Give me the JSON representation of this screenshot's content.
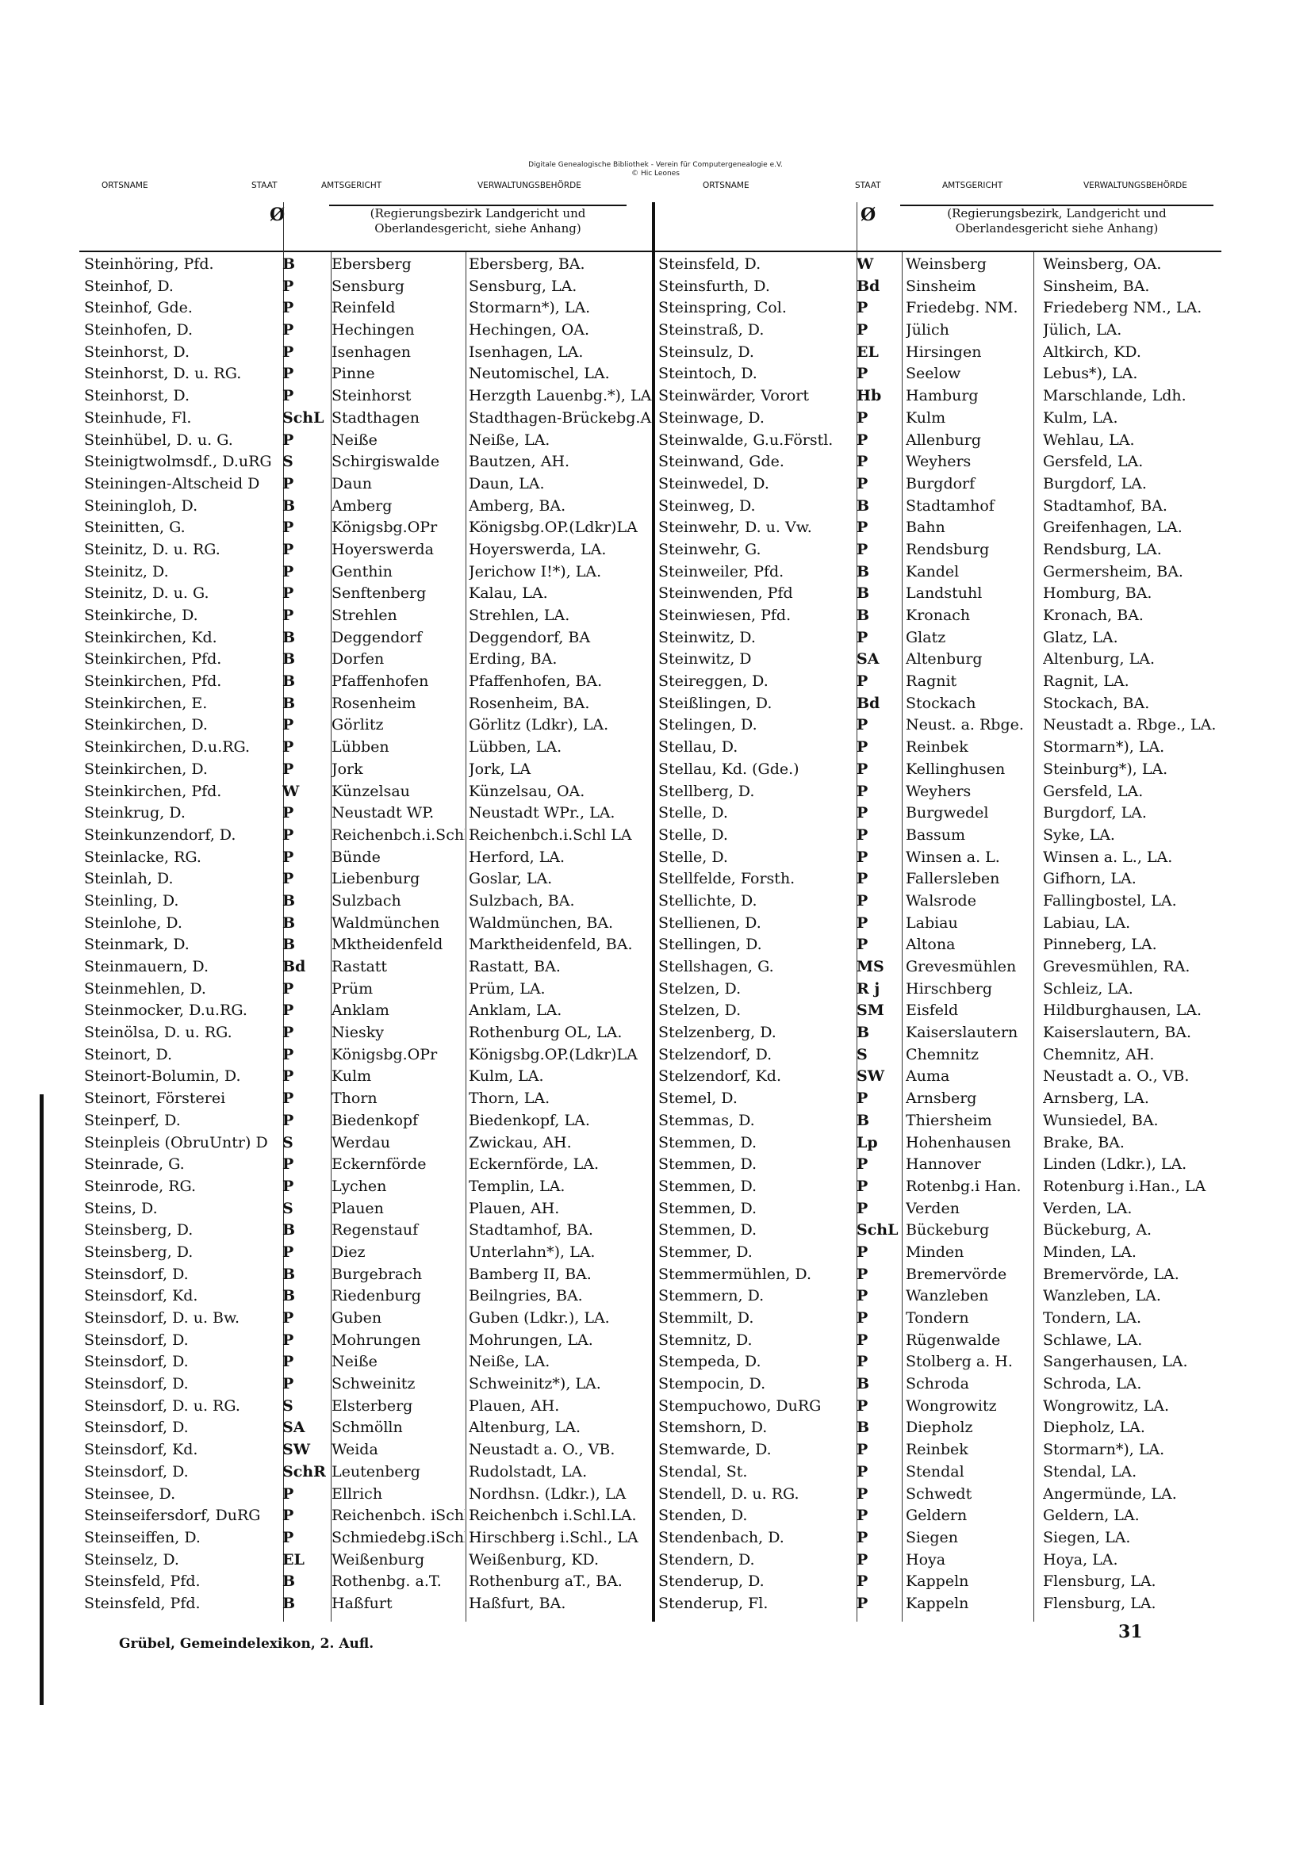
{
  "watermark": {
    "line1": "Digitale Genealogische Bibliothek - Verein für Computergenealogie e.V.",
    "line2": "© Hic Leones"
  },
  "column_headers": [
    "ORTSNAME",
    "STAAT",
    "AMTSGERICHT",
    "VERWALTUNGSBEHÖRDE"
  ],
  "staat_symbol": "Ø",
  "subheader": {
    "left": "(Regierungsbezirk Landgericht und Oberlandesgericht, siehe Anhang)",
    "right": "(Regierungsbezirk, Landgericht und Oberlandesgericht siehe Anhang)"
  },
  "left_rows": [
    [
      "Steinhöring, Pfd.",
      "B",
      "Ebersberg",
      "Ebersberg, BA."
    ],
    [
      "Steinhof, D.",
      "P",
      "Sensburg",
      "Sensburg, LA."
    ],
    [
      "Steinhof, Gde.",
      "P",
      "Reinfeld",
      "Stormarn*), LA."
    ],
    [
      "Steinhofen, D.",
      "P",
      "Hechingen",
      "Hechingen, OA."
    ],
    [
      "Steinhorst, D.",
      "P",
      "Isenhagen",
      "Isenhagen, LA."
    ],
    [
      "Steinhorst, D. u. RG.",
      "P",
      "Pinne",
      "Neutomischel, LA."
    ],
    [
      "Steinhorst, D.",
      "P",
      "Steinhorst",
      "Herzgth Lauenbg.*), LA"
    ],
    [
      "Steinhude, Fl.",
      "SchL",
      "Stadthagen",
      "Stadthagen-Brückebg.A"
    ],
    [
      "Steinhübel, D. u. G.",
      "P",
      "Neiße",
      "Neiße, LA."
    ],
    [
      "Steinigtwolmsdf., D.uRG",
      "S",
      "Schirgiswalde",
      "Bautzen, AH."
    ],
    [
      "Steiningen-Altscheid D",
      "P",
      "Daun",
      "Daun, LA."
    ],
    [
      "Steiningloh, D.",
      "B",
      "Amberg",
      "Amberg, BA."
    ],
    [
      "Steinitten, G.",
      "P",
      "Königsbg.OPr",
      "Königsbg.OP.(Ldkr)LA"
    ],
    [
      "Steinitz, D. u. RG.",
      "P",
      "Hoyerswerda",
      "Hoyerswerda, LA."
    ],
    [
      "Steinitz, D.",
      "P",
      "Genthin",
      "Jerichow I!*), LA."
    ],
    [
      "Steinitz, D. u. G.",
      "P",
      "Senftenberg",
      "Kalau, LA."
    ],
    [
      "Steinkirche, D.",
      "P",
      "Strehlen",
      "Strehlen, LA."
    ],
    [
      "Steinkirchen, Kd.",
      "B",
      "Deggendorf",
      "Deggendorf, BA"
    ],
    [
      "Steinkirchen, Pfd.",
      "B",
      "Dorfen",
      "Erding, BA."
    ],
    [
      "Steinkirchen, Pfd.",
      "B",
      "Pfaffenhofen",
      "Pfaffenhofen, BA."
    ],
    [
      "Steinkirchen, E.",
      "B",
      "Rosenheim",
      "Rosenheim, BA."
    ],
    [
      "Steinkirchen, D.",
      "P",
      "Görlitz",
      "Görlitz (Ldkr), LA."
    ],
    [
      "Steinkirchen, D.u.RG.",
      "P",
      "Lübben",
      "Lübben, LA."
    ],
    [
      "Steinkirchen, D.",
      "P",
      "Jork",
      "Jork, LA"
    ],
    [
      "Steinkirchen, Pfd.",
      "W",
      "Künzelsau",
      "Künzelsau, OA."
    ],
    [
      "Steinkrug, D.",
      "P",
      "Neustadt WP.",
      "Neustadt WPr., LA."
    ],
    [
      "Steinkunzendorf, D.",
      "P",
      "Reichenbch.i.Schl.",
      "Reichenbch.i.Schl LA"
    ],
    [
      "Steinlacke, RG.",
      "P",
      "Bünde",
      "Herford, LA."
    ],
    [
      "Steinlah, D.",
      "P",
      "Liebenburg",
      "Goslar, LA."
    ],
    [
      "Steinling, D.",
      "B",
      "Sulzbach",
      "Sulzbach, BA."
    ],
    [
      "Steinlohe, D.",
      "B",
      "Waldmünchen",
      "Waldmünchen, BA."
    ],
    [
      "Steinmark, D.",
      "B",
      "Mktheidenfeld",
      "Marktheidenfeld, BA."
    ],
    [
      "Steinmauern, D.",
      "Bd",
      "Rastatt",
      "Rastatt, BA."
    ],
    [
      "Steinmehlen, D.",
      "P",
      "Prüm",
      "Prüm, LA."
    ],
    [
      "Steinmocker, D.u.RG.",
      "P",
      "Anklam",
      "Anklam, LA."
    ],
    [
      "Steinölsa, D. u. RG.",
      "P",
      "Niesky",
      "Rothenburg OL, LA."
    ],
    [
      "Steinort, D.",
      "P",
      "Königsbg.OPr",
      "Königsbg.OP.(Ldkr)LA"
    ],
    [
      "Steinort-Bolumin, D.",
      "P",
      "Kulm",
      "Kulm, LA."
    ],
    [
      "Steinort, Försterei",
      "P",
      "Thorn",
      "Thorn, LA."
    ],
    [
      "Steinperf, D.",
      "P",
      "Biedenkopf",
      "Biedenkopf, LA."
    ],
    [
      "Steinpleis (ObruUntr) D",
      "S",
      "Werdau",
      "Zwickau, AH."
    ],
    [
      "Steinrade, G.",
      "P",
      "Eckernförde",
      "Eckernförde, LA."
    ],
    [
      "Steinrode, RG.",
      "P",
      "Lychen",
      "Templin, LA."
    ],
    [
      "Steins, D.",
      "S",
      "Plauen",
      "Plauen, AH."
    ],
    [
      "Steinsberg, D.",
      "B",
      "Regenstauf",
      "Stadtamhof, BA."
    ],
    [
      "Steinsberg, D.",
      "P",
      "Diez",
      "Unterlahn*), LA."
    ],
    [
      "Steinsdorf, D.",
      "B",
      "Burgebrach",
      "Bamberg II, BA."
    ],
    [
      "Steinsdorf, Kd.",
      "B",
      "Riedenburg",
      "Beilngries, BA."
    ],
    [
      "Steinsdorf, D. u. Bw.",
      "P",
      "Guben",
      "Guben (Ldkr.), LA."
    ],
    [
      "Steinsdorf, D.",
      "P",
      "Mohrungen",
      "Mohrungen, LA."
    ],
    [
      "Steinsdorf, D.",
      "P",
      "Neiße",
      "Neiße, LA."
    ],
    [
      "Steinsdorf, D.",
      "P",
      "Schweinitz",
      "Schweinitz*), LA."
    ],
    [
      "Steinsdorf, D. u. RG.",
      "S",
      "Elsterberg",
      "Plauen, AH."
    ],
    [
      "Steinsdorf, D.",
      "SA",
      "Schmölln",
      "Altenburg, LA."
    ],
    [
      "Steinsdorf, Kd.",
      "SW",
      "Weida",
      "Neustadt a. O., VB."
    ],
    [
      "Steinsdorf, D.",
      "SchR",
      "Leutenberg",
      "Rudolstadt, LA."
    ],
    [
      "Steinsee, D.",
      "P",
      "Ellrich",
      "Nordhsn. (Ldkr.), LA"
    ],
    [
      "Steinseifersdorf, DuRG",
      "P",
      "Reichenbch. iSchl.",
      "Reichenbch i.Schl.LA."
    ],
    [
      "Steinseiffen, D.",
      "P",
      "Schmiedebg.iSchl",
      "Hirschberg i.Schl., LA"
    ],
    [
      "Steinselz, D.",
      "EL",
      "Weißenburg",
      "Weißenburg, KD."
    ],
    [
      "Steinsfeld, Pfd.",
      "B",
      "Rothenbg. a.T.",
      "Rothenburg aT., BA."
    ],
    [
      "Steinsfeld, Pfd.",
      "B",
      "Haßfurt",
      "Haßfurt, BA."
    ]
  ],
  "right_rows": [
    [
      "Steinsfeld, D.",
      "W",
      "Weinsberg",
      "Weinsberg, OA."
    ],
    [
      "Steinsfurth, D.",
      "Bd",
      "Sinsheim",
      "Sinsheim, BA."
    ],
    [
      "Steinspring, Col.",
      "P",
      "Friedebg. NM.",
      "Friedeberg NM., LA."
    ],
    [
      "Steinstraß, D.",
      "P",
      "Jülich",
      "Jülich, LA."
    ],
    [
      "Steinsulz, D.",
      "EL",
      "Hirsingen",
      "Altkirch, KD."
    ],
    [
      "Steintoch, D.",
      "P",
      "Seelow",
      "Lebus*), LA."
    ],
    [
      "Steinwärder, Vorort",
      "Hb",
      "Hamburg",
      "Marschlande, Ldh."
    ],
    [
      "Steinwage, D.",
      "P",
      "Kulm",
      "Kulm, LA."
    ],
    [
      "Steinwalde, G.u.Förstl.",
      "P",
      "Allenburg",
      "Wehlau, LA."
    ],
    [
      "Steinwand, Gde.",
      "P",
      "Weyhers",
      "Gersfeld, LA."
    ],
    [
      "Steinwedel, D.",
      "P",
      "Burgdorf",
      "Burgdorf, LA."
    ],
    [
      "Steinweg, D.",
      "B",
      "Stadtamhof",
      "Stadtamhof, BA."
    ],
    [
      "Steinwehr, D. u. Vw.",
      "P",
      "Bahn",
      "Greifenhagen, LA."
    ],
    [
      "Steinwehr, G.",
      "P",
      "Rendsburg",
      "Rendsburg, LA."
    ],
    [
      "Steinweiler, Pfd.",
      "B",
      "Kandel",
      "Germersheim, BA."
    ],
    [
      "Steinwenden, Pfd",
      "B",
      "Landstuhl",
      "Homburg, BA."
    ],
    [
      "Steinwiesen, Pfd.",
      "B",
      "Kronach",
      "Kronach, BA."
    ],
    [
      "Steinwitz, D.",
      "P",
      "Glatz",
      "Glatz, LA."
    ],
    [
      "Steinwitz, D",
      "SA",
      "Altenburg",
      "Altenburg, LA."
    ],
    [
      "Steireggen, D.",
      "P",
      "Ragnit",
      "Ragnit, LA."
    ],
    [
      "Steißlingen, D.",
      "Bd",
      "Stockach",
      "Stockach, BA."
    ],
    [
      "Stelingen, D.",
      "P",
      "Neust. a. Rbge.",
      "Neustadt a. Rbge., LA."
    ],
    [
      "Stellau, D.",
      "P",
      "Reinbek",
      "Stormarn*), LA."
    ],
    [
      "Stellau, Kd. (Gde.)",
      "P",
      "Kellinghusen",
      "Steinburg*), LA."
    ],
    [
      "Stellberg, D.",
      "P",
      "Weyhers",
      "Gersfeld, LA."
    ],
    [
      "Stelle, D.",
      "P",
      "Burgwedel",
      "Burgdorf, LA."
    ],
    [
      "Stelle, D.",
      "P",
      "Bassum",
      "Syke, LA."
    ],
    [
      "Stelle, D.",
      "P",
      "Winsen a. L.",
      "Winsen a. L., LA."
    ],
    [
      "Stellfelde, Forsth.",
      "P",
      "Fallersleben",
      "Gifhorn, LA."
    ],
    [
      "Stellichte, D.",
      "P",
      "Walsrode",
      "Fallingbostel, LA."
    ],
    [
      "Stellienen, D.",
      "P",
      "Labiau",
      "Labiau, LA."
    ],
    [
      "Stellingen, D.",
      "P",
      "Altona",
      "Pinneberg, LA."
    ],
    [
      "Stellshagen, G.",
      "MS",
      "Grevesmühlen",
      "Grevesmühlen, RA."
    ],
    [
      "Stelzen, D.",
      "R j",
      "Hirschberg",
      "Schleiz, LA."
    ],
    [
      "Stelzen, D.",
      "SM",
      "Eisfeld",
      "Hildburghausen, LA."
    ],
    [
      "Stelzenberg, D.",
      "B",
      "Kaiserslautern",
      "Kaiserslautern, BA."
    ],
    [
      "Stelzendorf, D.",
      "S",
      "Chemnitz",
      "Chemnitz, AH."
    ],
    [
      "Stelzendorf, Kd.",
      "SW",
      "Auma",
      "Neustadt a. O., VB."
    ],
    [
      "Stemel, D.",
      "P",
      "Arnsberg",
      "Arnsberg, LA."
    ],
    [
      "Stemmas, D.",
      "B",
      "Thiersheim",
      "Wunsiedel, BA."
    ],
    [
      "Stemmen, D.",
      "Lp",
      "Hohenhausen",
      "Brake, BA."
    ],
    [
      "Stemmen, D.",
      "P",
      "Hannover",
      "Linden (Ldkr.), LA."
    ],
    [
      "Stemmen, D.",
      "P",
      "Rotenbg.i Han.",
      "Rotenburg i.Han., LA"
    ],
    [
      "Stemmen, D.",
      "P",
      "Verden",
      "Verden, LA."
    ],
    [
      "Stemmen, D.",
      "SchL",
      "Bückeburg",
      "Bückeburg, A."
    ],
    [
      "Stemmer, D.",
      "P",
      "Minden",
      "Minden, LA."
    ],
    [
      "Stemmermühlen, D.",
      "P",
      "Bremervörde",
      "Bremervörde, LA."
    ],
    [
      "Stemmern, D.",
      "P",
      "Wanzleben",
      "Wanzleben, LA."
    ],
    [
      "Stemmilt, D.",
      "P",
      "Tondern",
      "Tondern, LA."
    ],
    [
      "Stemnitz, D.",
      "P",
      "Rügenwalde",
      "Schlawe, LA."
    ],
    [
      "Stempeda, D.",
      "P",
      "Stolberg a. H.",
      "Sangerhausen, LA."
    ],
    [
      "Stempocin, D.",
      "B",
      "Schroda",
      "Schroda, LA."
    ],
    [
      "Stempuchowo, DuRG",
      "P",
      "Wongrowitz",
      "Wongrowitz, LA."
    ],
    [
      "Stemshorn, D.",
      "B",
      "Diepholz",
      "Diepholz, LA."
    ],
    [
      "Stemwarde, D.",
      "P",
      "Reinbek",
      "Stormarn*), LA."
    ],
    [
      "Stendal, St.",
      "P",
      "Stendal",
      "Stendal, LA."
    ],
    [
      "Stendell, D. u. RG.",
      "P",
      "Schwedt",
      "Angermünde, LA."
    ],
    [
      "Stenden, D.",
      "P",
      "Geldern",
      "Geldern, LA."
    ],
    [
      "Stendenbach, D.",
      "P",
      "Siegen",
      "Siegen, LA."
    ],
    [
      "Stendern, D.",
      "P",
      "Hoya",
      "Hoya, LA."
    ],
    [
      "Stenderup, D.",
      "P",
      "Kappeln",
      "Flensburg, LA."
    ],
    [
      "Stenderup, Fl.",
      "P",
      "Kappeln",
      "Flensburg, LA."
    ]
  ],
  "footer": {
    "source": "Grübel, Gemeindelexikon, 2. Aufl.",
    "page_number": "31"
  }
}
